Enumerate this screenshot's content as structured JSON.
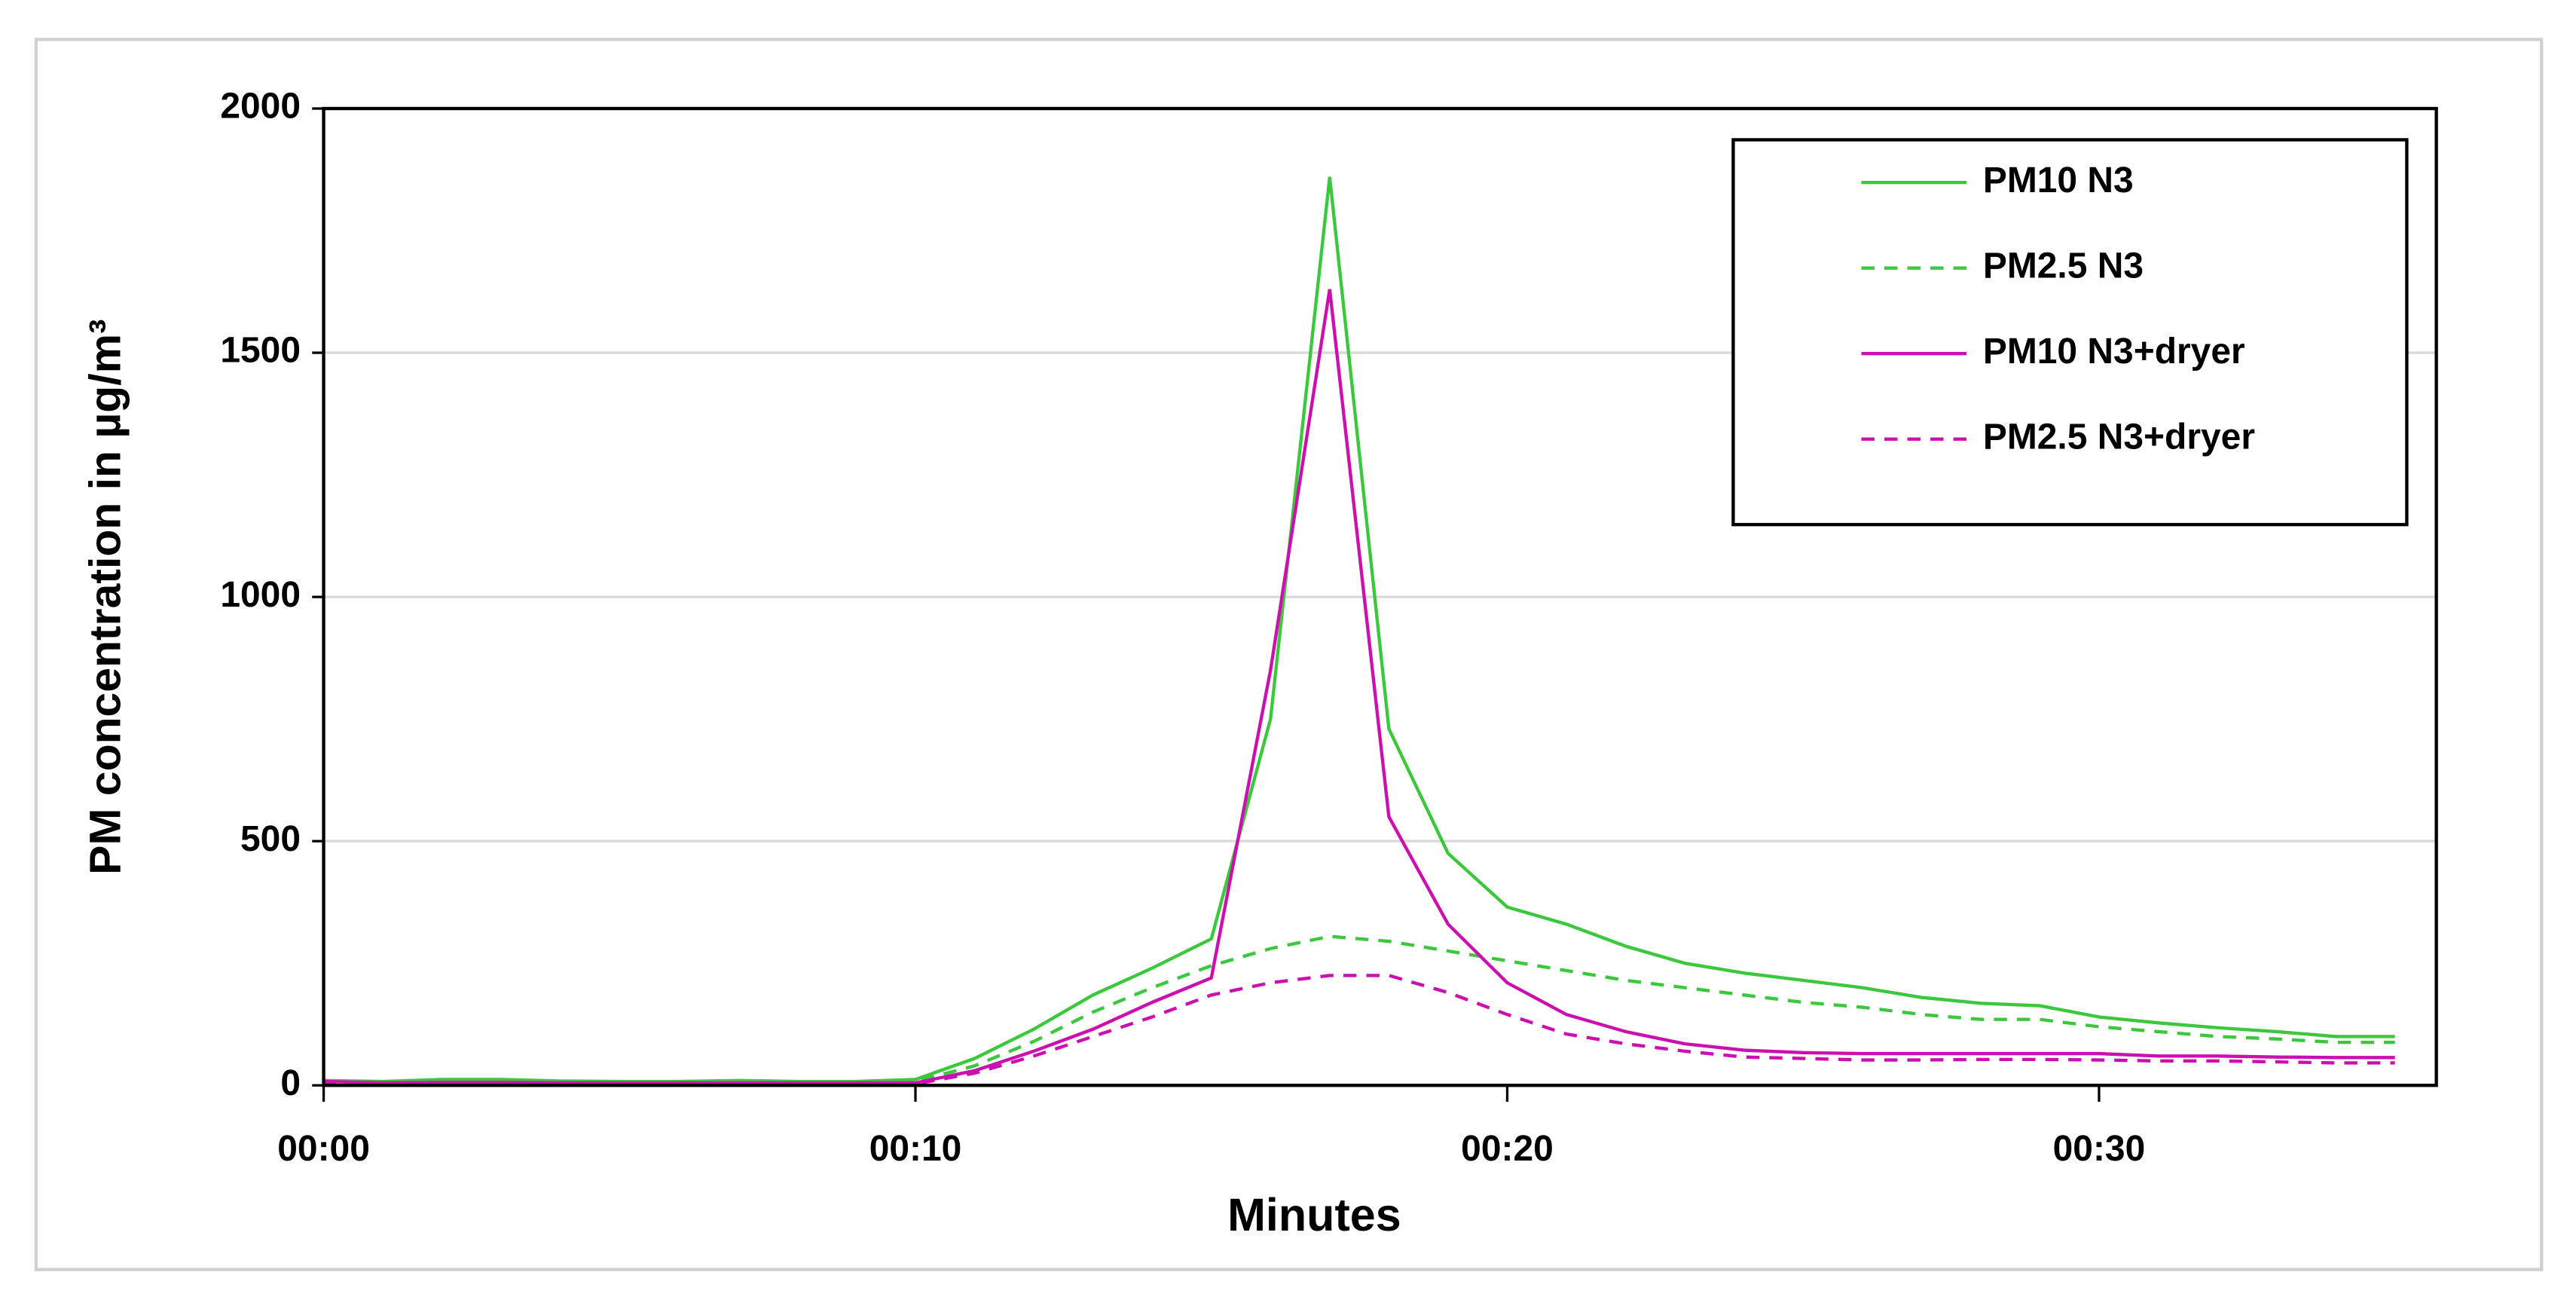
{
  "chart_data": {
    "type": "line",
    "x_label": "Minutes",
    "y_label": "PM concentration in µg/m³",
    "x": [
      0,
      1,
      2,
      3,
      4,
      5,
      6,
      7,
      8,
      9,
      10,
      11,
      12,
      13,
      14,
      15,
      16,
      17,
      18,
      19,
      20,
      21,
      22,
      23,
      24,
      25,
      26,
      27,
      28,
      29,
      30,
      31,
      32,
      33,
      34,
      35
    ],
    "series": [
      {
        "name": "PM10 N3",
        "color": "#3cc83c",
        "dashed": false,
        "values": [
          10,
          8,
          12,
          12,
          9,
          8,
          8,
          10,
          8,
          8,
          12,
          55,
          115,
          185,
          240,
          300,
          750,
          1860,
          730,
          475,
          365,
          330,
          285,
          250,
          230,
          215,
          200,
          180,
          168,
          163,
          140,
          128,
          118,
          110,
          100,
          100
        ]
      },
      {
        "name": "PM2.5 N3",
        "color": "#3cc83c",
        "dashed": true,
        "values": [
          5,
          5,
          6,
          6,
          5,
          5,
          5,
          6,
          5,
          5,
          8,
          40,
          90,
          150,
          200,
          245,
          280,
          305,
          295,
          275,
          255,
          235,
          215,
          200,
          185,
          170,
          160,
          145,
          135,
          135,
          120,
          110,
          100,
          95,
          88,
          88
        ]
      },
      {
        "name": "PM10 N3+dryer",
        "color": "#cc10b0",
        "dashed": false,
        "values": [
          8,
          5,
          6,
          6,
          5,
          5,
          5,
          5,
          5,
          5,
          5,
          30,
          70,
          115,
          170,
          220,
          850,
          1630,
          550,
          330,
          210,
          145,
          110,
          85,
          72,
          67,
          65,
          65,
          65,
          65,
          65,
          60,
          60,
          58,
          57,
          57
        ]
      },
      {
        "name": "PM2.5 N3+dryer",
        "color": "#cc10b0",
        "dashed": true,
        "values": [
          3,
          3,
          3,
          3,
          3,
          3,
          3,
          3,
          3,
          3,
          3,
          25,
          60,
          100,
          140,
          185,
          210,
          225,
          225,
          190,
          145,
          105,
          85,
          70,
          58,
          55,
          52,
          52,
          53,
          53,
          52,
          50,
          50,
          48,
          46,
          46
        ]
      }
    ],
    "xlim": [
      0,
      35.7
    ],
    "xticks": [
      {
        "value": 0,
        "label": "00:00"
      },
      {
        "value": 10,
        "label": "00:10"
      },
      {
        "value": 20,
        "label": "00:20"
      },
      {
        "value": 30,
        "label": "00:30"
      }
    ],
    "ylim": [
      0,
      2000
    ],
    "yticks": [
      0,
      500,
      1000,
      1500,
      2000
    ],
    "grid": true,
    "legend": "upper-right"
  }
}
